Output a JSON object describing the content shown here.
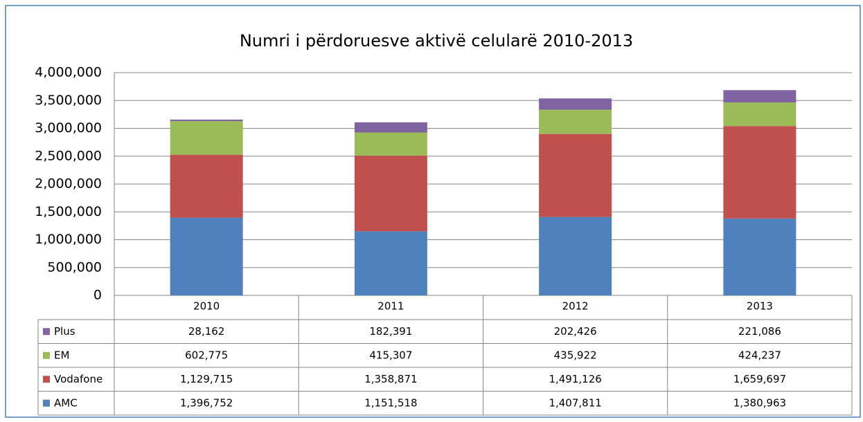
{
  "chart_data": {
    "type": "stacked_bar",
    "title": "Numri i përdoruesve aktivë celularë 2010-2013",
    "categories": [
      "2010",
      "2011",
      "2012",
      "2013"
    ],
    "series": [
      {
        "name": "AMC",
        "color": "#4f81bd",
        "values": [
          1396752,
          1151518,
          1407811,
          1380963
        ],
        "value_labels": [
          "1,396,752",
          "1,151,518",
          "1,407,811",
          "1,380,963"
        ]
      },
      {
        "name": "Vodafone",
        "color": "#c0504d",
        "values": [
          1129715,
          1358871,
          1491126,
          1659697
        ],
        "value_labels": [
          "1,129,715",
          "1,358,871",
          "1,491,126",
          "1,659,697"
        ]
      },
      {
        "name": "EM",
        "color": "#9bbb59",
        "values": [
          602775,
          415307,
          435922,
          424237
        ],
        "value_labels": [
          "602,775",
          "415,307",
          "435,922",
          "424,237"
        ]
      },
      {
        "name": "Plus",
        "color": "#8064a2",
        "values": [
          28162,
          182391,
          202426,
          221086
        ],
        "value_labels": [
          "28,162",
          "182,391",
          "202,426",
          "221,086"
        ]
      }
    ],
    "ylim": [
      0,
      4000000
    ],
    "yticks": [
      0,
      {
        "value": 500000,
        "label": "500,000"
      },
      {
        "value": 1000000,
        "label": "1,000,000"
      },
      {
        "value": 1500000,
        "label": "1,500,000"
      },
      {
        "value": 2000000,
        "label": "2,000,000"
      },
      {
        "value": 2500000,
        "label": "2,500,000"
      },
      {
        "value": 3000000,
        "label": "3,000,000"
      },
      {
        "value": 3500000,
        "label": "3,500,000"
      },
      {
        "value": 4000000,
        "label": "4,000,000"
      }
    ],
    "grid": true
  }
}
